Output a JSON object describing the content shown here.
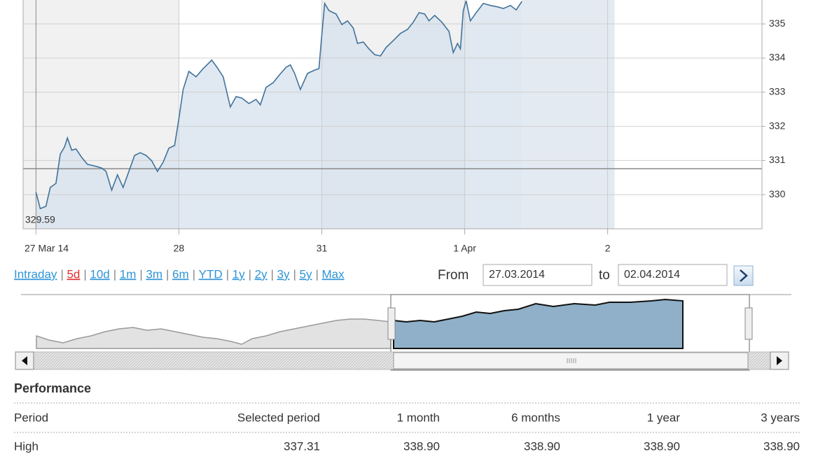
{
  "chart_data": {
    "type": "line",
    "low_label": "329.59",
    "x": [
      0,
      0.03,
      0.07,
      0.1,
      0.14,
      0.17,
      0.2,
      0.22,
      0.25,
      0.28,
      0.32,
      0.36,
      0.41,
      0.46,
      0.49,
      0.53,
      0.57,
      0.61,
      0.65,
      0.69,
      0.73,
      0.77,
      0.81,
      0.85,
      0.89,
      0.93,
      0.97,
      1.0,
      1.03,
      1.07,
      1.12,
      1.17,
      1.23,
      1.27,
      1.31,
      1.36,
      1.4,
      1.44,
      1.49,
      1.54,
      1.57,
      1.61,
      1.66,
      1.7,
      1.75,
      1.78,
      1.81,
      1.85,
      1.9,
      1.95,
      1.98,
      2.0,
      2.02,
      2.05,
      2.1,
      2.14,
      2.18,
      2.22,
      2.25,
      2.29,
      2.33,
      2.37,
      2.41,
      2.45,
      2.5,
      2.55,
      2.6,
      2.64,
      2.68,
      2.72,
      2.75,
      2.79,
      2.84,
      2.89,
      2.92,
      2.95,
      2.97,
      2.99,
      3.01,
      3.04,
      3.08,
      3.13,
      3.18,
      3.23,
      3.27,
      3.32,
      3.36,
      3.4
    ],
    "series": [
      {
        "color": "#41739b",
        "values": [
          330.07,
          329.59,
          329.66,
          330.21,
          330.33,
          331.19,
          331.4,
          331.66,
          331.3,
          331.34,
          331.09,
          330.89,
          330.84,
          330.78,
          330.68,
          330.13,
          330.58,
          330.21,
          330.68,
          331.15,
          331.23,
          331.15,
          330.99,
          330.68,
          330.95,
          331.36,
          331.44,
          332.22,
          333.08,
          333.61,
          333.45,
          333.69,
          333.94,
          333.71,
          333.45,
          332.57,
          332.87,
          332.83,
          332.67,
          332.79,
          332.63,
          333.14,
          333.28,
          333.49,
          333.73,
          333.8,
          333.55,
          333.08,
          333.55,
          333.65,
          333.69,
          334.68,
          335.6,
          335.39,
          335.29,
          334.98,
          335.09,
          334.88,
          334.43,
          334.47,
          334.27,
          334.1,
          334.06,
          334.31,
          334.51,
          334.72,
          334.84,
          335.05,
          335.33,
          335.29,
          335.09,
          335.25,
          335.05,
          334.78,
          334.16,
          334.43,
          334.27,
          335.39,
          335.68,
          335.09,
          335.33,
          335.6,
          335.54,
          335.5,
          335.45,
          335.54,
          335.41,
          335.66
        ]
      }
    ],
    "reference_line": 330.76,
    "xlim": [
      -0.09,
      5.08
    ],
    "xticks": [
      {
        "value": 0,
        "label": "27 Mar 14"
      },
      {
        "value": 1,
        "label": "28"
      },
      {
        "value": 2,
        "label": "31"
      },
      {
        "value": 3,
        "label": "1 Apr"
      },
      {
        "value": 4,
        "label": "2"
      }
    ],
    "ylim": [
      329,
      335.7
    ],
    "yticks": [
      330,
      331,
      332,
      333,
      334,
      335
    ],
    "grid": true
  },
  "range_links": {
    "items": [
      "Intraday",
      "5d",
      "10d",
      "1m",
      "3m",
      "6m",
      "YTD",
      "1y",
      "2y",
      "3y",
      "5y",
      "Max"
    ],
    "active": 1
  },
  "date_range": {
    "from_label": "From",
    "from": "27.03.2014",
    "to_label": "to",
    "to": "02.04.2014"
  },
  "performance": {
    "title": "Performance",
    "header": [
      "Period",
      "Selected period",
      "1 month",
      "6 months",
      "1 year",
      "3 years"
    ],
    "rows": [
      [
        "High",
        "337.31",
        "338.90",
        "338.90",
        "338.90",
        "338.90"
      ]
    ]
  }
}
